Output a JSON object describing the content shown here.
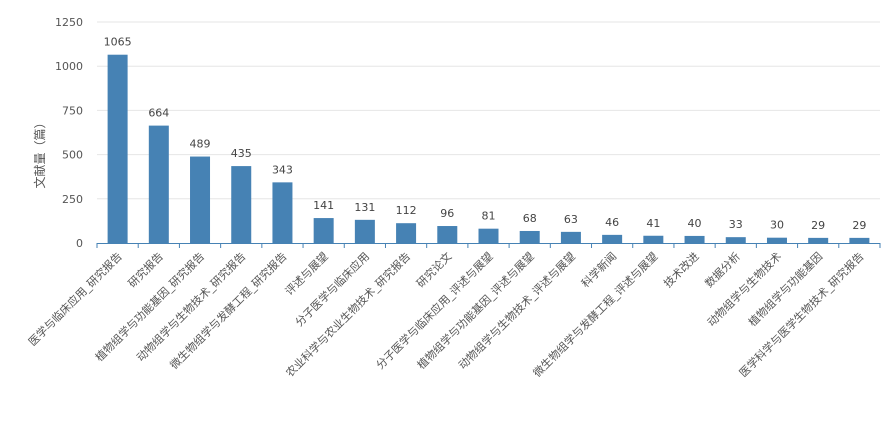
{
  "chart_data": {
    "type": "bar",
    "title": "",
    "xlabel": "",
    "ylabel": "文献量（篇）",
    "ylim": [
      0,
      1250
    ],
    "yticks": [
      0,
      250,
      500,
      750,
      1000,
      1250
    ],
    "grid": true,
    "legend": "none",
    "bar_color": "#4682b4",
    "categories": [
      "医学与临床应用_研究报告",
      "研究报告",
      "植物组学与功能基因_研究报告",
      "动物组学与生物技术_研究报告",
      "微生物组学与发酵工程_研究报告",
      "评述与展望",
      "分子医学与临床应用",
      "农业科学与农业生物技术_研究报告",
      "研究论文",
      "分子医学与临床应用_评述与展望",
      "植物组学与功能基因_评述与展望",
      "动物组学与生物技术_评述与展望",
      "科学新闻",
      "微生物组学与发酵工程_评述与展望",
      "技术改进",
      "数据分析",
      "动物组学与生物技术",
      "植物组学与功能基因",
      "医学科学与医学生物技术_研究报告"
    ],
    "values": [
      1065,
      664,
      489,
      435,
      343,
      141,
      131,
      112,
      96,
      81,
      68,
      63,
      46,
      41,
      40,
      33,
      30,
      29,
      29
    ]
  }
}
